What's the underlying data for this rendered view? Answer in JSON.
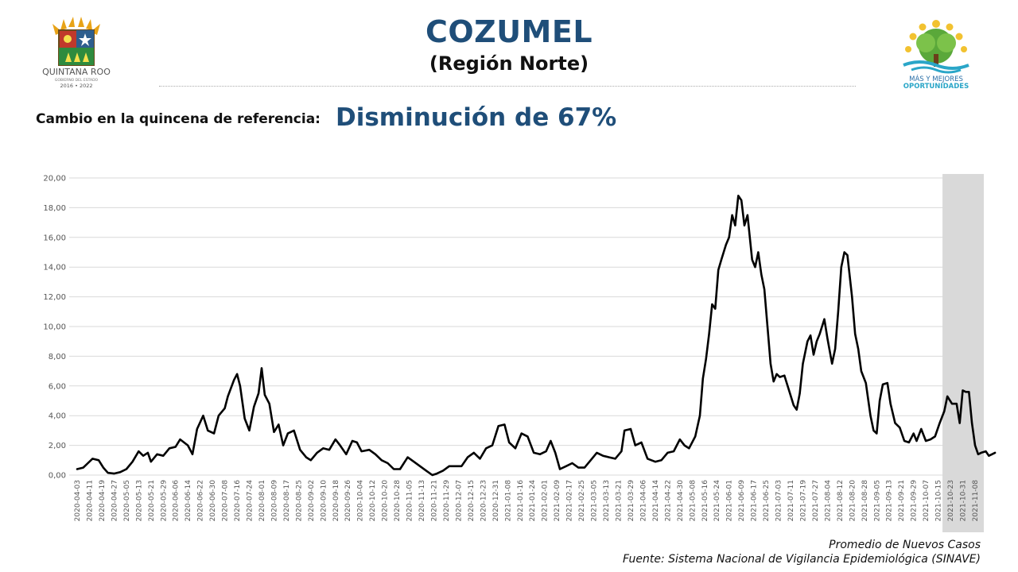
{
  "header": {
    "title": "COZUMEL",
    "subtitle": "(Región Norte)",
    "change_label": "Cambio en la quincena de referencia:",
    "change_value": "Disminución de 67%"
  },
  "logos": {
    "left": {
      "name": "QUINTANA ROO",
      "subtext": "GOBIERNO DEL ESTADO",
      "years": "2016 • 2022"
    },
    "right": {
      "line1": "MÁS Y MEJORES",
      "line2": "OPORTUNIDADES"
    }
  },
  "colors": {
    "title": "#1f4e79",
    "line": "#000000",
    "grid": "#d9d9d9",
    "highlight": "#d9d9d9"
  },
  "captions": {
    "series": "Promedio de Nuevos Casos",
    "source": "Fuente: Sistema Nacional de Vigilancia Epidemiológica (SINAVE)"
  },
  "chart_data": {
    "type": "line",
    "ylim": [
      0,
      20
    ],
    "yticks": [
      "0,00",
      "2,00",
      "4,00",
      "6,00",
      "8,00",
      "10,00",
      "12,00",
      "14,00",
      "16,00",
      "18,00",
      "20,00"
    ],
    "grid": true,
    "xtick_labels": [
      "2020-04-03",
      "2020-04-11",
      "2020-04-19",
      "2020-04-27",
      "2020-05-05",
      "2020-05-13",
      "2020-05-21",
      "2020-05-29",
      "2020-06-06",
      "2020-06-14",
      "2020-06-22",
      "2020-06-30",
      "2020-07-08",
      "2020-07-16",
      "2020-07-24",
      "2020-08-01",
      "2020-08-09",
      "2020-08-17",
      "2020-08-25",
      "2020-09-02",
      "2020-09-10",
      "2020-09-18",
      "2020-09-26",
      "2020-10-04",
      "2020-10-12",
      "2020-10-20",
      "2020-10-28",
      "2020-11-05",
      "2020-11-13",
      "2020-11-21",
      "2020-11-29",
      "2020-12-07",
      "2020-12-15",
      "2020-12-23",
      "2020-12-31",
      "2021-01-08",
      "2021-01-16",
      "2021-01-24",
      "2021-02-01",
      "2021-02-09",
      "2021-02-17",
      "2021-02-25",
      "2021-03-05",
      "2021-03-13",
      "2021-03-21",
      "2021-03-29",
      "2021-04-06",
      "2021-04-14",
      "2021-04-22",
      "2021-04-30",
      "2021-05-08",
      "2021-05-16",
      "2021-05-24",
      "2021-06-01",
      "2021-06-09",
      "2021-06-17",
      "2021-06-25",
      "2021-07-03",
      "2021-07-11",
      "2021-07-19",
      "2021-07-27",
      "2021-08-04",
      "2021-08-12",
      "2021-08-20",
      "2021-08-28",
      "2021-09-05",
      "2021-09-13",
      "2021-09-21",
      "2021-09-29",
      "2021-10-07",
      "2021-10-15",
      "2021-10-23",
      "2021-10-31",
      "2021-11-08"
    ],
    "highlight_range": [
      "2021-10-23",
      "2021-11-10"
    ],
    "series": [
      {
        "values": [
          [
            "2020-04-03",
            0.4
          ],
          [
            "2020-04-07",
            0.5
          ],
          [
            "2020-04-10",
            0.8
          ],
          [
            "2020-04-13",
            1.1
          ],
          [
            "2020-04-17",
            1.0
          ],
          [
            "2020-04-20",
            0.5
          ],
          [
            "2020-04-23",
            0.15
          ],
          [
            "2020-04-27",
            0.1
          ],
          [
            "2020-05-01",
            0.2
          ],
          [
            "2020-05-05",
            0.4
          ],
          [
            "2020-05-09",
            0.9
          ],
          [
            "2020-05-13",
            1.6
          ],
          [
            "2020-05-16",
            1.3
          ],
          [
            "2020-05-19",
            1.5
          ],
          [
            "2020-05-21",
            0.9
          ],
          [
            "2020-05-25",
            1.4
          ],
          [
            "2020-05-29",
            1.3
          ],
          [
            "2020-06-02",
            1.8
          ],
          [
            "2020-06-06",
            1.9
          ],
          [
            "2020-06-09",
            2.4
          ],
          [
            "2020-06-14",
            2.0
          ],
          [
            "2020-06-17",
            1.4
          ],
          [
            "2020-06-20",
            3.1
          ],
          [
            "2020-06-24",
            4.0
          ],
          [
            "2020-06-27",
            3.0
          ],
          [
            "2020-07-01",
            2.8
          ],
          [
            "2020-07-04",
            4.0
          ],
          [
            "2020-07-08",
            4.5
          ],
          [
            "2020-07-10",
            5.3
          ],
          [
            "2020-07-14",
            6.4
          ],
          [
            "2020-07-16",
            6.8
          ],
          [
            "2020-07-18",
            6.0
          ],
          [
            "2020-07-21",
            3.8
          ],
          [
            "2020-07-24",
            3.0
          ],
          [
            "2020-07-27",
            4.6
          ],
          [
            "2020-07-30",
            5.5
          ],
          [
            "2020-08-01",
            7.2
          ],
          [
            "2020-08-03",
            5.4
          ],
          [
            "2020-08-06",
            4.8
          ],
          [
            "2020-08-09",
            2.9
          ],
          [
            "2020-08-12",
            3.4
          ],
          [
            "2020-08-15",
            2.0
          ],
          [
            "2020-08-18",
            2.8
          ],
          [
            "2020-08-22",
            3.0
          ],
          [
            "2020-08-26",
            1.7
          ],
          [
            "2020-08-30",
            1.2
          ],
          [
            "2020-09-02",
            1.0
          ],
          [
            "2020-09-06",
            1.5
          ],
          [
            "2020-09-10",
            1.8
          ],
          [
            "2020-09-14",
            1.7
          ],
          [
            "2020-09-18",
            2.4
          ],
          [
            "2020-09-21",
            2.0
          ],
          [
            "2020-09-25",
            1.4
          ],
          [
            "2020-09-29",
            2.3
          ],
          [
            "2020-10-02",
            2.2
          ],
          [
            "2020-10-05",
            1.6
          ],
          [
            "2020-10-10",
            1.7
          ],
          [
            "2020-10-14",
            1.4
          ],
          [
            "2020-10-18",
            1.0
          ],
          [
            "2020-10-22",
            0.8
          ],
          [
            "2020-10-26",
            0.4
          ],
          [
            "2020-10-30",
            0.4
          ],
          [
            "2020-11-04",
            1.2
          ],
          [
            "2020-11-08",
            0.9
          ],
          [
            "2020-11-12",
            0.6
          ],
          [
            "2020-11-16",
            0.3
          ],
          [
            "2020-11-20",
            0.0
          ],
          [
            "2020-11-23",
            0.1
          ],
          [
            "2020-11-27",
            0.3
          ],
          [
            "2020-12-01",
            0.6
          ],
          [
            "2020-12-05",
            0.6
          ],
          [
            "2020-12-09",
            0.6
          ],
          [
            "2020-12-13",
            1.2
          ],
          [
            "2020-12-17",
            1.5
          ],
          [
            "2020-12-21",
            1.1
          ],
          [
            "2020-12-25",
            1.8
          ],
          [
            "2020-12-29",
            2.0
          ],
          [
            "2021-01-02",
            3.3
          ],
          [
            "2021-01-06",
            3.4
          ],
          [
            "2021-01-09",
            2.2
          ],
          [
            "2021-01-13",
            1.8
          ],
          [
            "2021-01-17",
            2.8
          ],
          [
            "2021-01-21",
            2.6
          ],
          [
            "2021-01-25",
            1.5
          ],
          [
            "2021-01-29",
            1.4
          ],
          [
            "2021-02-02",
            1.6
          ],
          [
            "2021-02-05",
            2.3
          ],
          [
            "2021-02-08",
            1.5
          ],
          [
            "2021-02-11",
            0.4
          ],
          [
            "2021-02-15",
            0.6
          ],
          [
            "2021-02-19",
            0.8
          ],
          [
            "2021-02-23",
            0.5
          ],
          [
            "2021-02-27",
            0.5
          ],
          [
            "2021-03-03",
            1.0
          ],
          [
            "2021-03-07",
            1.5
          ],
          [
            "2021-03-11",
            1.3
          ],
          [
            "2021-03-15",
            1.2
          ],
          [
            "2021-03-19",
            1.1
          ],
          [
            "2021-03-23",
            1.6
          ],
          [
            "2021-03-25",
            3.0
          ],
          [
            "2021-03-29",
            3.1
          ],
          [
            "2021-04-01",
            2.0
          ],
          [
            "2021-04-05",
            2.2
          ],
          [
            "2021-04-09",
            1.1
          ],
          [
            "2021-04-14",
            0.9
          ],
          [
            "2021-04-18",
            1.0
          ],
          [
            "2021-04-22",
            1.5
          ],
          [
            "2021-04-26",
            1.6
          ],
          [
            "2021-04-30",
            2.4
          ],
          [
            "2021-05-03",
            2.0
          ],
          [
            "2021-05-06",
            1.8
          ],
          [
            "2021-05-10",
            2.6
          ],
          [
            "2021-05-13",
            4.0
          ],
          [
            "2021-05-15",
            6.5
          ],
          [
            "2021-05-17",
            7.8
          ],
          [
            "2021-05-19",
            9.5
          ],
          [
            "2021-05-21",
            11.5
          ],
          [
            "2021-05-23",
            11.2
          ],
          [
            "2021-05-25",
            13.8
          ],
          [
            "2021-05-27",
            14.5
          ],
          [
            "2021-05-30",
            15.5
          ],
          [
            "2021-06-01",
            16.0
          ],
          [
            "2021-06-03",
            17.5
          ],
          [
            "2021-06-05",
            16.8
          ],
          [
            "2021-06-07",
            18.8
          ],
          [
            "2021-06-09",
            18.5
          ],
          [
            "2021-06-11",
            16.8
          ],
          [
            "2021-06-13",
            17.5
          ],
          [
            "2021-06-16",
            14.5
          ],
          [
            "2021-06-18",
            14.0
          ],
          [
            "2021-06-20",
            15.0
          ],
          [
            "2021-06-22",
            13.5
          ],
          [
            "2021-06-24",
            12.5
          ],
          [
            "2021-06-26",
            10.0
          ],
          [
            "2021-06-28",
            7.5
          ],
          [
            "2021-06-30",
            6.3
          ],
          [
            "2021-07-02",
            6.8
          ],
          [
            "2021-07-04",
            6.6
          ],
          [
            "2021-07-07",
            6.7
          ],
          [
            "2021-07-10",
            5.7
          ],
          [
            "2021-07-13",
            4.7
          ],
          [
            "2021-07-15",
            4.4
          ],
          [
            "2021-07-17",
            5.5
          ],
          [
            "2021-07-19",
            7.5
          ],
          [
            "2021-07-22",
            9.0
          ],
          [
            "2021-07-24",
            9.4
          ],
          [
            "2021-07-26",
            8.1
          ],
          [
            "2021-07-28",
            9.0
          ],
          [
            "2021-07-30",
            9.5
          ],
          [
            "2021-08-02",
            10.5
          ],
          [
            "2021-08-04",
            9.2
          ],
          [
            "2021-08-07",
            7.5
          ],
          [
            "2021-08-09",
            8.5
          ],
          [
            "2021-08-11",
            11.0
          ],
          [
            "2021-08-13",
            14.0
          ],
          [
            "2021-08-15",
            15.0
          ],
          [
            "2021-08-17",
            14.8
          ],
          [
            "2021-08-20",
            12.0
          ],
          [
            "2021-08-22",
            9.5
          ],
          [
            "2021-08-24",
            8.5
          ],
          [
            "2021-08-26",
            7.0
          ],
          [
            "2021-08-29",
            6.2
          ],
          [
            "2021-09-01",
            4.0
          ],
          [
            "2021-09-03",
            3.0
          ],
          [
            "2021-09-05",
            2.8
          ],
          [
            "2021-09-07",
            5.0
          ],
          [
            "2021-09-09",
            6.1
          ],
          [
            "2021-09-12",
            6.2
          ],
          [
            "2021-09-14",
            4.8
          ],
          [
            "2021-09-17",
            3.5
          ],
          [
            "2021-09-20",
            3.2
          ],
          [
            "2021-09-23",
            2.3
          ],
          [
            "2021-09-26",
            2.2
          ],
          [
            "2021-09-29",
            2.8
          ],
          [
            "2021-10-01",
            2.3
          ],
          [
            "2021-10-04",
            3.1
          ],
          [
            "2021-10-07",
            2.3
          ],
          [
            "2021-10-10",
            2.4
          ],
          [
            "2021-10-13",
            2.6
          ],
          [
            "2021-10-16",
            3.5
          ],
          [
            "2021-10-19",
            4.3
          ],
          [
            "2021-10-21",
            5.3
          ],
          [
            "2021-10-24",
            4.8
          ],
          [
            "2021-10-27",
            4.8
          ],
          [
            "2021-10-29",
            3.5
          ],
          [
            "2021-10-31",
            5.7
          ],
          [
            "2021-11-02",
            5.6
          ],
          [
            "2021-11-04",
            5.6
          ],
          [
            "2021-11-06",
            3.5
          ],
          [
            "2021-11-08",
            2.0
          ],
          [
            "2021-11-10",
            1.4
          ],
          [
            "2021-11-12",
            1.5
          ],
          [
            "2021-11-15",
            1.6
          ],
          [
            "2021-11-17",
            1.3
          ],
          [
            "2021-11-19",
            1.4
          ],
          [
            "2021-11-21",
            1.5
          ]
        ]
      }
    ]
  }
}
